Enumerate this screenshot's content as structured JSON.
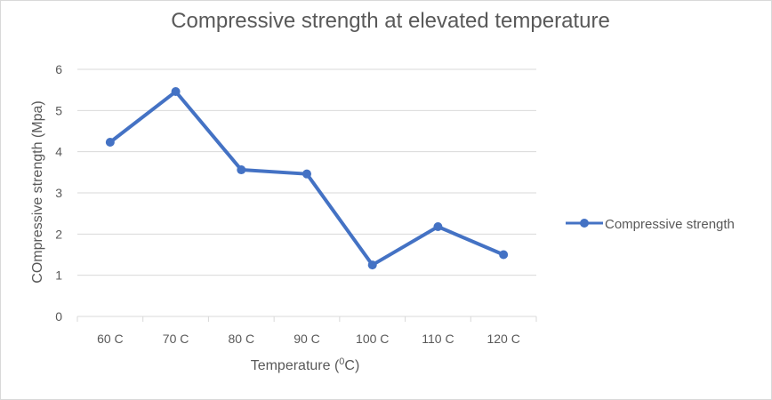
{
  "chart_data": {
    "type": "line",
    "title": "Compressive strength at elevated temperature",
    "xlabel_main": "Temperature (",
    "xlabel_sup": "0",
    "xlabel_end": "C)",
    "ylabel": "COmpressive strength (Mpa)",
    "categories": [
      "60 C",
      "70 C",
      "80 C",
      "90 C",
      "100 C",
      "110 C",
      "120 C"
    ],
    "series": [
      {
        "name": "Compressive strength",
        "values": [
          4.23,
          5.46,
          3.56,
          3.46,
          1.25,
          2.18,
          1.5
        ]
      }
    ],
    "yticks": [
      "0",
      "1",
      "2",
      "3",
      "4",
      "5",
      "6"
    ],
    "ylim": [
      0,
      6
    ],
    "grid": true,
    "legend": "right",
    "colors": {
      "series": "#4472c4",
      "grid": "#d9d9d9",
      "text": "#595959"
    }
  }
}
